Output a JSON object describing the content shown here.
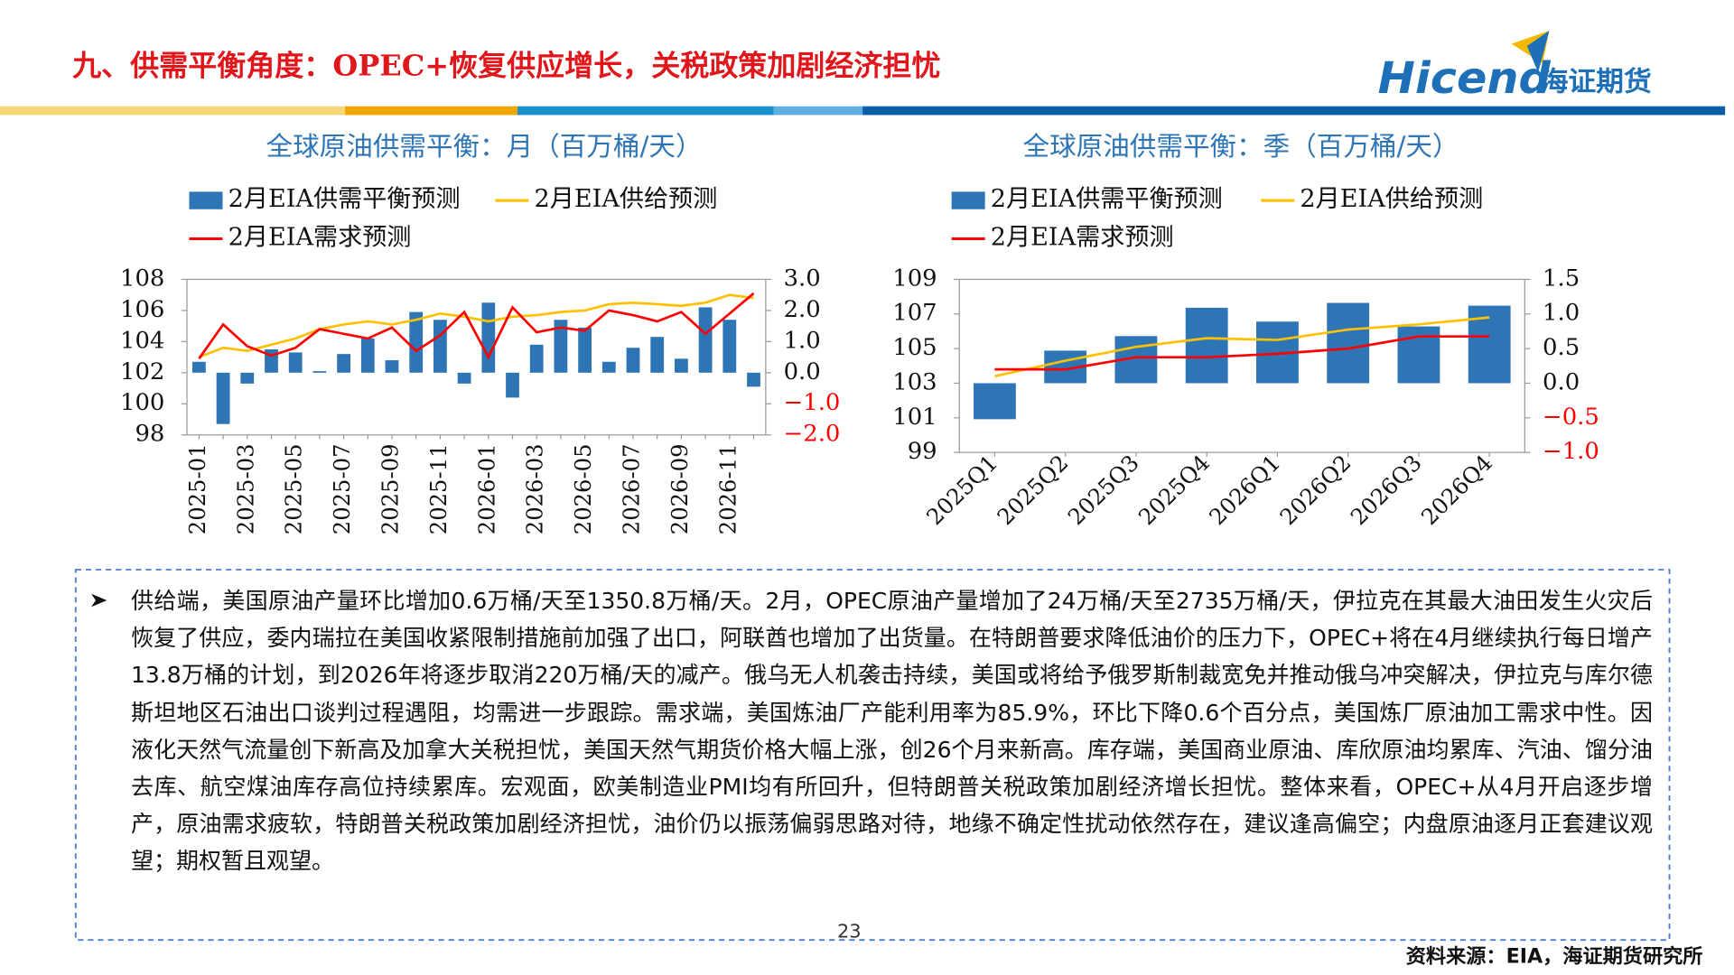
{
  "header": {
    "title": "九、供需平衡角度：OPEC+恢复供应增长，关税政策加剧经济担忧",
    "logo_en": "Hicend",
    "logo_cn": "海证期货"
  },
  "chart_data": [
    {
      "type": "combo",
      "title": "全球原油供需平衡：月（百万桶/天）",
      "categories": [
        "2025-01",
        null,
        "2025-03",
        null,
        "2025-05",
        null,
        "2025-07",
        null,
        "2025-09",
        null,
        "2025-11",
        null,
        "2026-01",
        null,
        "2026-03",
        null,
        "2026-05",
        null,
        "2026-07",
        null,
        "2026-09",
        null,
        "2026-11",
        null
      ],
      "series": [
        {
          "name": "2月EIA供需平衡预测",
          "kind": "bar",
          "axis": "y2",
          "color": "#2e75b6",
          "values": [
            0.35,
            -1.65,
            -0.35,
            0.75,
            0.65,
            0.05,
            0.6,
            1.1,
            0.4,
            1.95,
            1.7,
            -0.35,
            2.25,
            -0.8,
            0.9,
            1.7,
            1.45,
            0.35,
            0.8,
            1.15,
            0.45,
            2.1,
            1.7,
            -0.45
          ]
        },
        {
          "name": "2月EIA供给预测",
          "kind": "line",
          "color": "#ffc000",
          "values": [
            103.0,
            103.6,
            103.4,
            103.8,
            104.2,
            104.8,
            105.1,
            105.3,
            105.1,
            105.4,
            105.8,
            105.6,
            105.3,
            105.6,
            105.7,
            105.9,
            106.0,
            106.4,
            106.5,
            106.4,
            106.3,
            106.5,
            107.0,
            106.8
          ]
        },
        {
          "name": "2月EIA需求预测",
          "kind": "line",
          "color": "#ff0000",
          "values": [
            102.9,
            105.1,
            103.7,
            103.1,
            103.6,
            104.8,
            104.5,
            104.2,
            104.9,
            103.4,
            104.4,
            105.9,
            103.0,
            106.2,
            104.6,
            104.9,
            104.7,
            106.0,
            105.7,
            105.3,
            105.9,
            104.5,
            105.8,
            107.1
          ]
        }
      ],
      "ylim": [
        98,
        108
      ],
      "yticks": [
        98,
        100,
        102,
        104,
        106,
        108
      ],
      "y2lim": [
        -2,
        3
      ],
      "y2ticks": [
        {
          "value": -2,
          "label": "−2.0"
        },
        {
          "value": -1,
          "label": "−1.0"
        },
        {
          "value": 0,
          "label": "0.0"
        },
        {
          "value": 1,
          "label": "1.0"
        },
        {
          "value": 2,
          "label": "2.0"
        },
        {
          "value": 3,
          "label": "3.0"
        }
      ],
      "y2_negative_label_color": "#ff0000",
      "legend": "top",
      "grid": false
    },
    {
      "type": "combo",
      "title": "全球原油供需平衡：季（百万桶/天）",
      "categories": [
        "2025Q1",
        "2025Q2",
        "2025Q3",
        "2025Q4",
        "2026Q1",
        "2026Q2",
        "2026Q3",
        "2026Q4"
      ],
      "series": [
        {
          "name": "2月EIA供需平衡预测",
          "kind": "bar",
          "axis": "y2",
          "color": "#2e75b6",
          "values": [
            -0.52,
            0.47,
            0.68,
            1.09,
            0.89,
            1.16,
            0.82,
            1.12
          ]
        },
        {
          "name": "2月EIA供给预测",
          "kind": "line",
          "color": "#ffc000",
          "values": [
            103.4,
            104.3,
            105.1,
            105.6,
            105.5,
            106.1,
            106.4,
            106.8
          ]
        },
        {
          "name": "2月EIA需求预测",
          "kind": "line",
          "color": "#ff0000",
          "values": [
            103.8,
            103.8,
            104.5,
            104.5,
            104.7,
            105.0,
            105.7,
            105.7
          ]
        }
      ],
      "ylim": [
        99,
        109
      ],
      "yticks": [
        99,
        101,
        103,
        105,
        107,
        109
      ],
      "y2lim": [
        -1,
        1.5
      ],
      "y2ticks": [
        {
          "value": -1,
          "label": "−1.0"
        },
        {
          "value": -0.5,
          "label": "−0.5"
        },
        {
          "value": 0,
          "label": "0.0"
        },
        {
          "value": 0.5,
          "label": "0.5"
        },
        {
          "value": 1,
          "label": "1.0"
        },
        {
          "value": 1.5,
          "label": "1.5"
        }
      ],
      "y2_negative_label_color": "#ff0000",
      "legend": "top",
      "grid": false
    }
  ],
  "text_box": {
    "paragraph": "供给端，美国原油产量环比增加0.6万桶/天至1350.8万桶/天。2月，OPEC原油产量增加了24万桶/天至2735万桶/天，伊拉克在其最大油田发生火灾后恢复了供应，委内瑞拉在美国收紧限制措施前加强了出口，阿联酋也增加了出货量。在特朗普要求降低油价的压力下，OPEC+将在4月继续执行每日增产13.8万桶的计划，到2026年将逐步取消220万桶/天的减产。俄乌无人机袭击持续，美国或将给予俄罗斯制裁宽免并推动俄乌冲突解决，伊拉克与库尔德斯坦地区石油出口谈判过程遇阻，均需进一步跟踪。需求端，美国炼油厂产能利用率为85.9%，环比下降0.6个百分点，美国炼厂原油加工需求中性。因液化天然气流量创下新高及加拿大关税担忧，美国天然气期货价格大幅上涨，创26个月来新高。库存端，美国商业原油、库欣原油均累库、汽油、馏分油去库、航空煤油库存高位持续累库。宏观面，欧美制造业PMI均有所回升，但特朗普关税政策加剧经济增长担忧。整体来看，OPEC+从4月开启逐步增产，原油需求疲软，特朗普关税政策加剧经济担忧，油价仍以振荡偏弱思路对待，地缘不确定性扰动依然存在，建议逢高偏空；内盘原油逐月正套建议观望；期权暂且观望。"
  },
  "page_number": "23",
  "source": "资料来源：EIA，海证期货研究所"
}
